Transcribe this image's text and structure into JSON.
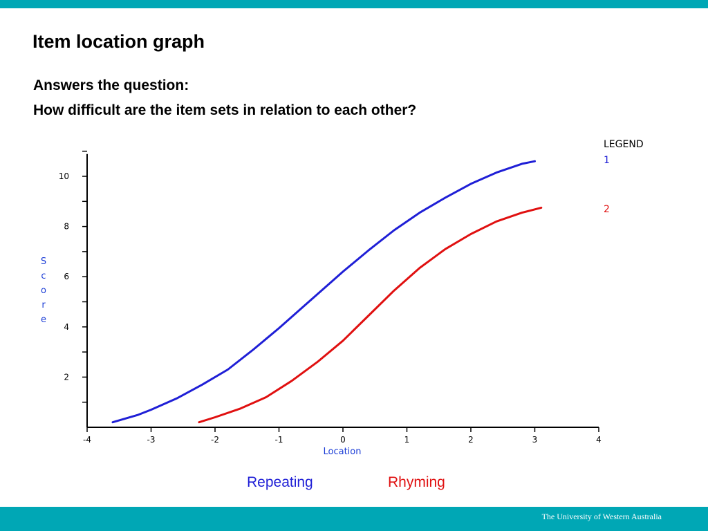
{
  "slide": {
    "title": "Item location graph",
    "subtitle_line1": "Answers the question:",
    "subtitle_line2": "How difficult are the item sets in relation to each other?",
    "footer": "The University of Western Australia",
    "accent_color": "#00a7b5"
  },
  "captions": [
    {
      "label": "Repeating",
      "color": "#1f1fd6"
    },
    {
      "label": "Rhyming",
      "color": "#e01010"
    }
  ],
  "chart_data": {
    "type": "line",
    "title": "",
    "xlabel": "Location",
    "ylabel": "Score",
    "xlim": [
      -4,
      4
    ],
    "ylim": [
      0,
      11
    ],
    "x_ticks": [
      -4,
      -3,
      -2,
      -1,
      0,
      1,
      2,
      3,
      4
    ],
    "y_tick_labels": [
      2,
      4,
      6,
      8,
      10
    ],
    "legend": {
      "title": "LEGEND",
      "placement": "top-right"
    },
    "series": [
      {
        "name": "1",
        "color": "#1f1fd6",
        "x": [
          -3.6,
          -3.2,
          -3.0,
          -2.6,
          -2.2,
          -1.8,
          -1.4,
          -1.0,
          -0.6,
          -0.2,
          0.0,
          0.4,
          0.8,
          1.2,
          1.6,
          2.0,
          2.4,
          2.8,
          3.0
        ],
        "y": [
          0.2,
          0.5,
          0.7,
          1.15,
          1.7,
          2.3,
          3.1,
          3.95,
          4.85,
          5.75,
          6.2,
          7.05,
          7.85,
          8.55,
          9.15,
          9.7,
          10.15,
          10.5,
          10.6
        ]
      },
      {
        "name": "2",
        "color": "#e01010",
        "x": [
          -2.25,
          -2.0,
          -1.6,
          -1.2,
          -0.8,
          -0.4,
          0.0,
          0.4,
          0.8,
          1.2,
          1.6,
          2.0,
          2.4,
          2.8,
          3.1
        ],
        "y": [
          0.2,
          0.4,
          0.75,
          1.2,
          1.85,
          2.6,
          3.45,
          4.45,
          5.45,
          6.35,
          7.1,
          7.7,
          8.2,
          8.55,
          8.75
        ]
      }
    ]
  }
}
